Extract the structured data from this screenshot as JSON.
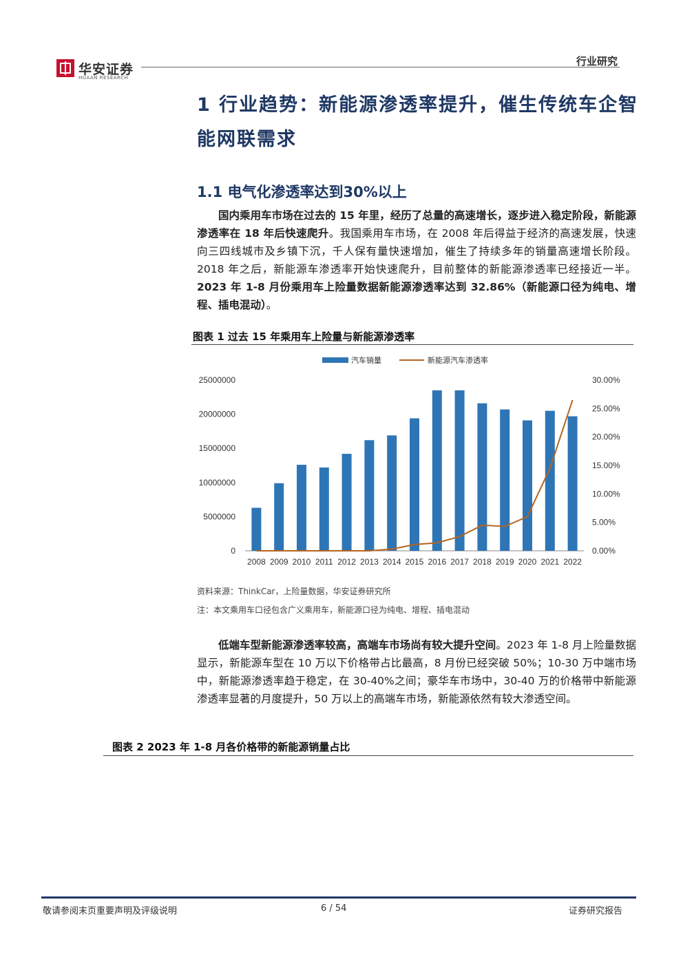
{
  "header": {
    "logo_cn": "华安证券",
    "logo_en": "HUAAN RESEARCH",
    "right_label": "行业研究"
  },
  "heading1": "1 行业趋势：新能源渗透率提升，催生传统车企智能网联需求",
  "heading2": "1.1 电气化渗透率达到30%以上",
  "para1": {
    "bold1": "国内乘用车市场在过去的 15 年里，经历了总量的高速增长，逐步进入稳定阶段，新能源渗透率在 18 年后快速爬升",
    "text1": "。我国乘用车市场，在 2008 年后得益于经济的高速发展，快速向三四线城市及乡镇下沉，千人保有量快速增加，催生了持续多年的销量高速增长阶段。2018 年之后，新能源车渗透率开始快速爬升，目前整体的新能源渗透率已经接近一半。",
    "bold2": "2023 年 1-8 月份乘用车上险量数据新能源渗透率达到 32.86%（新能源口径为纯电、增程、插电混动）",
    "end": "。"
  },
  "figure1": {
    "title": "图表 1 过去 15 年乘用车上险量与新能源渗透率",
    "source": "资料来源：ThinkCar，上险量数据，华安证券研究所",
    "note": "注：本文乘用车口径包含广义乘用车，新能源口径为纯电、增程、插电混动"
  },
  "chart_data": {
    "type": "bar",
    "categories": [
      "2008",
      "2009",
      "2010",
      "2011",
      "2012",
      "2013",
      "2014",
      "2015",
      "2016",
      "2017",
      "2018",
      "2019",
      "2020",
      "2021",
      "2022"
    ],
    "series": [
      {
        "name": "汽车销量",
        "type": "bar",
        "axis": "left",
        "color": "#2e75b6",
        "values": [
          6300000,
          9900000,
          12600000,
          12200000,
          14200000,
          16200000,
          16900000,
          19400000,
          23500000,
          23500000,
          21600000,
          20700000,
          19100000,
          20500000,
          19700000
        ]
      },
      {
        "name": "新能源汽车渗透率",
        "type": "line",
        "axis": "right",
        "color": "#b5651d",
        "values": [
          0.0,
          0.0,
          0.0,
          0.0,
          0.0,
          0.0,
          0.3,
          1.1,
          1.4,
          2.5,
          4.5,
          4.3,
          6.0,
          14.5,
          26.5
        ]
      }
    ],
    "left_ticks": [
      "25000000",
      "20000000",
      "15000000",
      "10000000",
      "5000000",
      "0"
    ],
    "right_ticks": [
      "30.00%",
      "25.00%",
      "20.00%",
      "15.00%",
      "10.00%",
      "5.00%",
      "0.00%"
    ],
    "ylim_left": [
      0,
      25000000
    ],
    "ylim_right": [
      0,
      30
    ],
    "legend_position": "top",
    "grid": false
  },
  "para2": {
    "bold": "低端车型新能源渗透率较高，高端车市场尚有较大提升空间",
    "text": "。2023 年 1-8 月上险量数据显示，新能源车型在 10 万以下价格带占比最高，8 月份已经突破 50%；10-30 万中端市场中，新能源渗透率趋于稳定，在 30-40%之间；豪华车市场中，30-40 万的价格带中新能源渗透率显著的月度提升，50 万以上的高端车市场，新能源依然有较大渗透空间。"
  },
  "figure2": {
    "title": "图表 2 2023 年 1-8 月各价格带的新能源销量占比"
  },
  "footer": {
    "left": "敬请参阅末页重要声明及评级说明",
    "page": "6 / 54",
    "right": "证券研究报告"
  }
}
